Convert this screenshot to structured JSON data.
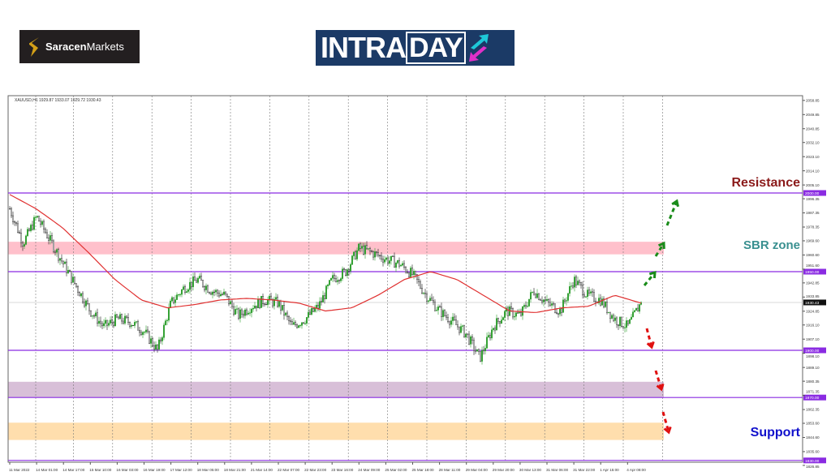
{
  "logos": {
    "saracen": {
      "bold": "Saracen",
      "light": "Markets"
    },
    "intraday": {
      "part1": "INTRA",
      "part2": "DAY"
    }
  },
  "chart_data": {
    "type": "candlestick",
    "symbol_header": "XAUUSD,H1  1929.87 1933.07 1929.72 1930.43",
    "current_price": "1930.43",
    "ylim": [
      1826.85,
      2058.85
    ],
    "y_ticks": [
      "2058.85",
      "2049.85",
      "2040.85",
      "2032.10",
      "2023.10",
      "2014.10",
      "2005.10",
      "1996.35",
      "1987.35",
      "1978.35",
      "1969.60",
      "1960.60",
      "1951.60",
      "1942.85",
      "1933.85",
      "1924.85",
      "1916.10",
      "1907.10",
      "1898.10",
      "1889.10",
      "1880.35",
      "1871.35",
      "1862.35",
      "1853.60",
      "1844.60",
      "1835.60",
      "1826.85"
    ],
    "x_ticks": [
      "11 Mar 2022",
      "14 Mar 01:00",
      "14 Mar 17:00",
      "15 Mar 10:00",
      "16 Mar 03:00",
      "16 Mar 19:00",
      "17 Mar 12:00",
      "18 Mar 05:00",
      "18 Mar 21:00",
      "21 Mar 14:00",
      "22 Mar 07:00",
      "22 Mar 23:00",
      "23 Mar 16:00",
      "24 Mar 09:00",
      "25 Mar 02:00",
      "25 Mar 18:00",
      "28 Mar 11:00",
      "29 Mar 04:00",
      "29 Mar 20:00",
      "30 Mar 13:00",
      "31 Mar 06:00",
      "31 Mar 22:00",
      "1 Apr 15:00",
      "4 Apr 08:00"
    ],
    "close_samples": [
      1990,
      1968,
      1985,
      1970,
      1955,
      1940,
      1925,
      1915,
      1920,
      1918,
      1912,
      1900,
      1930,
      1940,
      1945,
      1938,
      1935,
      1922,
      1928,
      1932,
      1930,
      1915,
      1920,
      1928,
      1945,
      1950,
      1965,
      1962,
      1958,
      1955,
      1948,
      1935,
      1925,
      1918,
      1910,
      1895,
      1915,
      1925,
      1922,
      1938,
      1930,
      1925,
      1945,
      1935,
      1932,
      1920,
      1915,
      1930.43
    ],
    "ma_samples": [
      1999,
      1990,
      1978,
      1962,
      1945,
      1932,
      1927,
      1929,
      1932,
      1933,
      1932,
      1930,
      1925,
      1927,
      1935,
      1945,
      1950,
      1945,
      1935,
      1925,
      1924,
      1927,
      1928,
      1935,
      1930
    ],
    "levels": [
      {
        "price": 2000,
        "tag": "2000.00"
      },
      {
        "price": 1950,
        "tag": "1950.00"
      },
      {
        "price": 1900,
        "tag": "1900.00"
      },
      {
        "price": 1870,
        "tag": "1870.00"
      },
      {
        "price": 1830,
        "tag": "1830.00"
      }
    ],
    "zones": [
      {
        "from": 1961,
        "to": 1969,
        "color": "#ffc0cb"
      },
      {
        "from": 1870,
        "to": 1880,
        "color": "#d8bfd8"
      },
      {
        "from": 1843,
        "to": 1854,
        "color": "#ffdead"
      }
    ],
    "annotations": [
      {
        "text": "Resistance",
        "color": "#8b1a1a"
      },
      {
        "text": "SBR zone",
        "color": "#3a9090"
      },
      {
        "text": "Support",
        "color": "#1010cc"
      }
    ],
    "arrows": {
      "up_color": "#1a8c1a",
      "down_color": "#e01010"
    },
    "colors": {
      "level": "#8a2be2",
      "ma": "#e03030",
      "up_candle": "#2e9e2e",
      "down_candle": "#1a1a1a"
    }
  }
}
